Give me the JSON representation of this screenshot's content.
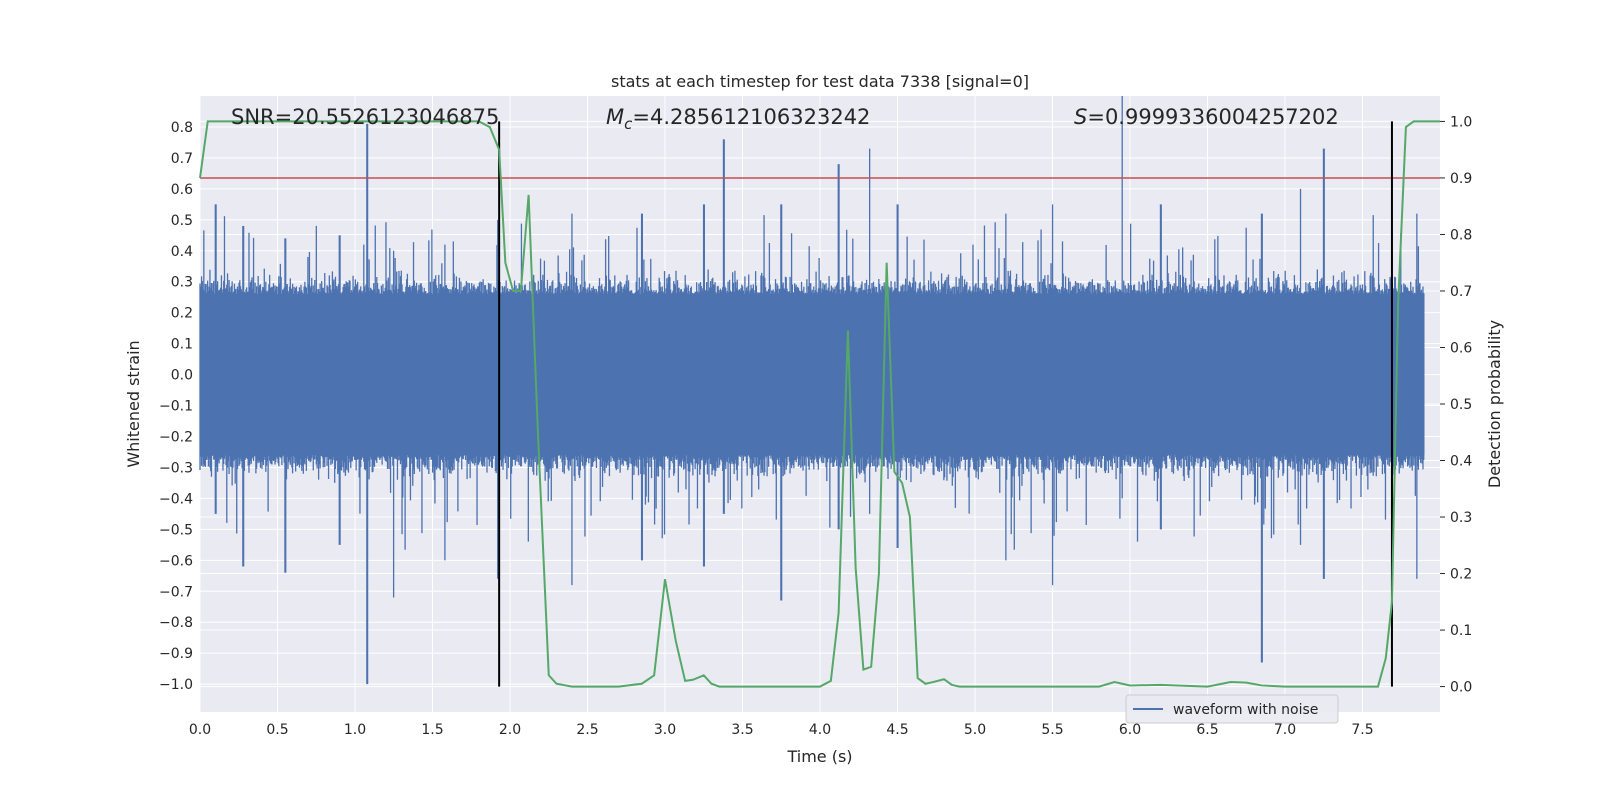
{
  "chart_data": {
    "type": "line",
    "title": "stats at each timestep for test data 7338 [signal=0]",
    "xlabel": "Time (s)",
    "ylabel_left": "Whitened strain",
    "ylabel_right": "Detection probability",
    "xlim": [
      0.0,
      8.0
    ],
    "ylim_left": [
      -1.09,
      0.9
    ],
    "ylim_right": [
      -0.045,
      1.045
    ],
    "x_ticks": [
      "0.0",
      "0.5",
      "1.0",
      "1.5",
      "2.0",
      "2.5",
      "3.0",
      "3.5",
      "4.0",
      "4.5",
      "5.0",
      "5.5",
      "6.0",
      "6.5",
      "7.0",
      "7.5"
    ],
    "y_left_ticks": [
      "0.8",
      "0.7",
      "0.6",
      "0.5",
      "0.4",
      "0.3",
      "0.2",
      "0.1",
      "0.0",
      "−0.1",
      "−0.2",
      "−0.3",
      "−0.4",
      "−0.5",
      "−0.6",
      "−0.7",
      "−0.8",
      "−0.9",
      "−1.0"
    ],
    "y_right_ticks": [
      "1.0",
      "0.9",
      "0.8",
      "0.7",
      "0.6",
      "0.5",
      "0.4",
      "0.3",
      "0.2",
      "0.1",
      "0.0"
    ],
    "grid": true,
    "legend_position": "lower-right",
    "annotations": {
      "snr": "SNR=20.5526123046875",
      "mc_symbol": "M",
      "mc_subscript": "c",
      "mc_value": "=4.285612106323242",
      "s_symbol": "S",
      "s_value": "=0.9999336004257202"
    },
    "threshold": {
      "value_right": 0.9,
      "color": "#c44e52"
    },
    "vertical_lines": [
      1.93,
      7.69
    ],
    "series": [
      {
        "name": "waveform with noise",
        "axis": "left",
        "color": "#4c72b0",
        "kind": "noise",
        "core_amplitude": 0.26,
        "sample_count": 1600,
        "spikes": [
          {
            "x": 0.1,
            "max": 0.55,
            "min": -0.45
          },
          {
            "x": 0.28,
            "max": 0.48,
            "min": -0.62
          },
          {
            "x": 0.55,
            "max": 0.44,
            "min": -0.64
          },
          {
            "x": 0.9,
            "max": 0.45,
            "min": -0.55
          },
          {
            "x": 1.08,
            "max": 0.81,
            "min": -1.0
          },
          {
            "x": 1.25,
            "max": 0.4,
            "min": -0.72
          },
          {
            "x": 1.58,
            "max": 0.42,
            "min": -0.6
          },
          {
            "x": 1.92,
            "max": 0.5,
            "min": -0.66
          },
          {
            "x": 2.4,
            "max": 0.52,
            "min": -0.68
          },
          {
            "x": 2.85,
            "max": 0.52,
            "min": -0.6
          },
          {
            "x": 3.25,
            "max": 0.55,
            "min": -0.62
          },
          {
            "x": 3.38,
            "max": 0.76,
            "min": -0.45
          },
          {
            "x": 3.75,
            "max": 0.55,
            "min": -0.73
          },
          {
            "x": 4.12,
            "max": 0.68,
            "min": -0.5
          },
          {
            "x": 4.32,
            "max": 0.73,
            "min": -0.45
          },
          {
            "x": 4.5,
            "max": 0.55,
            "min": -0.56
          },
          {
            "x": 5.2,
            "max": 0.52,
            "min": -0.6
          },
          {
            "x": 5.5,
            "max": 0.55,
            "min": -0.68
          },
          {
            "x": 5.95,
            "max": 0.9,
            "min": -0.4
          },
          {
            "x": 6.2,
            "max": 0.55,
            "min": -0.5
          },
          {
            "x": 6.85,
            "max": 0.52,
            "min": -0.93
          },
          {
            "x": 7.1,
            "max": 0.6,
            "min": -0.55
          },
          {
            "x": 7.25,
            "max": 0.73,
            "min": -0.66
          },
          {
            "x": 7.85,
            "max": 0.52,
            "min": -0.66
          }
        ]
      },
      {
        "name": "",
        "axis": "right",
        "color": "#55a868",
        "kind": "line",
        "x": [
          0.0,
          0.05,
          0.1,
          0.2,
          0.5,
          1.0,
          1.5,
          1.8,
          1.87,
          1.93,
          1.97,
          2.02,
          2.07,
          2.12,
          2.18,
          2.25,
          2.3,
          2.4,
          2.5,
          2.7,
          2.85,
          2.93,
          3.0,
          3.07,
          3.13,
          3.18,
          3.25,
          3.3,
          3.35,
          3.5,
          3.7,
          4.0,
          4.07,
          4.12,
          4.18,
          4.23,
          4.28,
          4.33,
          4.38,
          4.43,
          4.48,
          4.53,
          4.58,
          4.63,
          4.68,
          4.73,
          4.8,
          4.85,
          4.9,
          5.0,
          5.5,
          5.8,
          5.9,
          6.0,
          6.2,
          6.5,
          6.65,
          6.75,
          6.85,
          7.0,
          7.3,
          7.6,
          7.65,
          7.69,
          7.73,
          7.78,
          7.83,
          8.0
        ],
        "y": [
          0.9,
          1.0,
          1.0,
          1.0,
          1.0,
          1.0,
          1.0,
          1.0,
          0.99,
          0.95,
          0.75,
          0.7,
          0.7,
          0.87,
          0.45,
          0.02,
          0.005,
          0.0,
          0.0,
          0.0,
          0.005,
          0.02,
          0.19,
          0.08,
          0.01,
          0.012,
          0.02,
          0.005,
          0.0,
          0.0,
          0.0,
          0.0,
          0.01,
          0.13,
          0.63,
          0.21,
          0.03,
          0.035,
          0.2,
          0.75,
          0.38,
          0.36,
          0.3,
          0.015,
          0.005,
          0.008,
          0.013,
          0.003,
          0.0,
          0.0,
          0.0,
          0.0,
          0.008,
          0.002,
          0.003,
          0.0,
          0.008,
          0.007,
          0.002,
          0.0,
          0.0,
          0.0,
          0.05,
          0.15,
          0.68,
          0.99,
          1.0,
          1.0
        ]
      }
    ]
  }
}
